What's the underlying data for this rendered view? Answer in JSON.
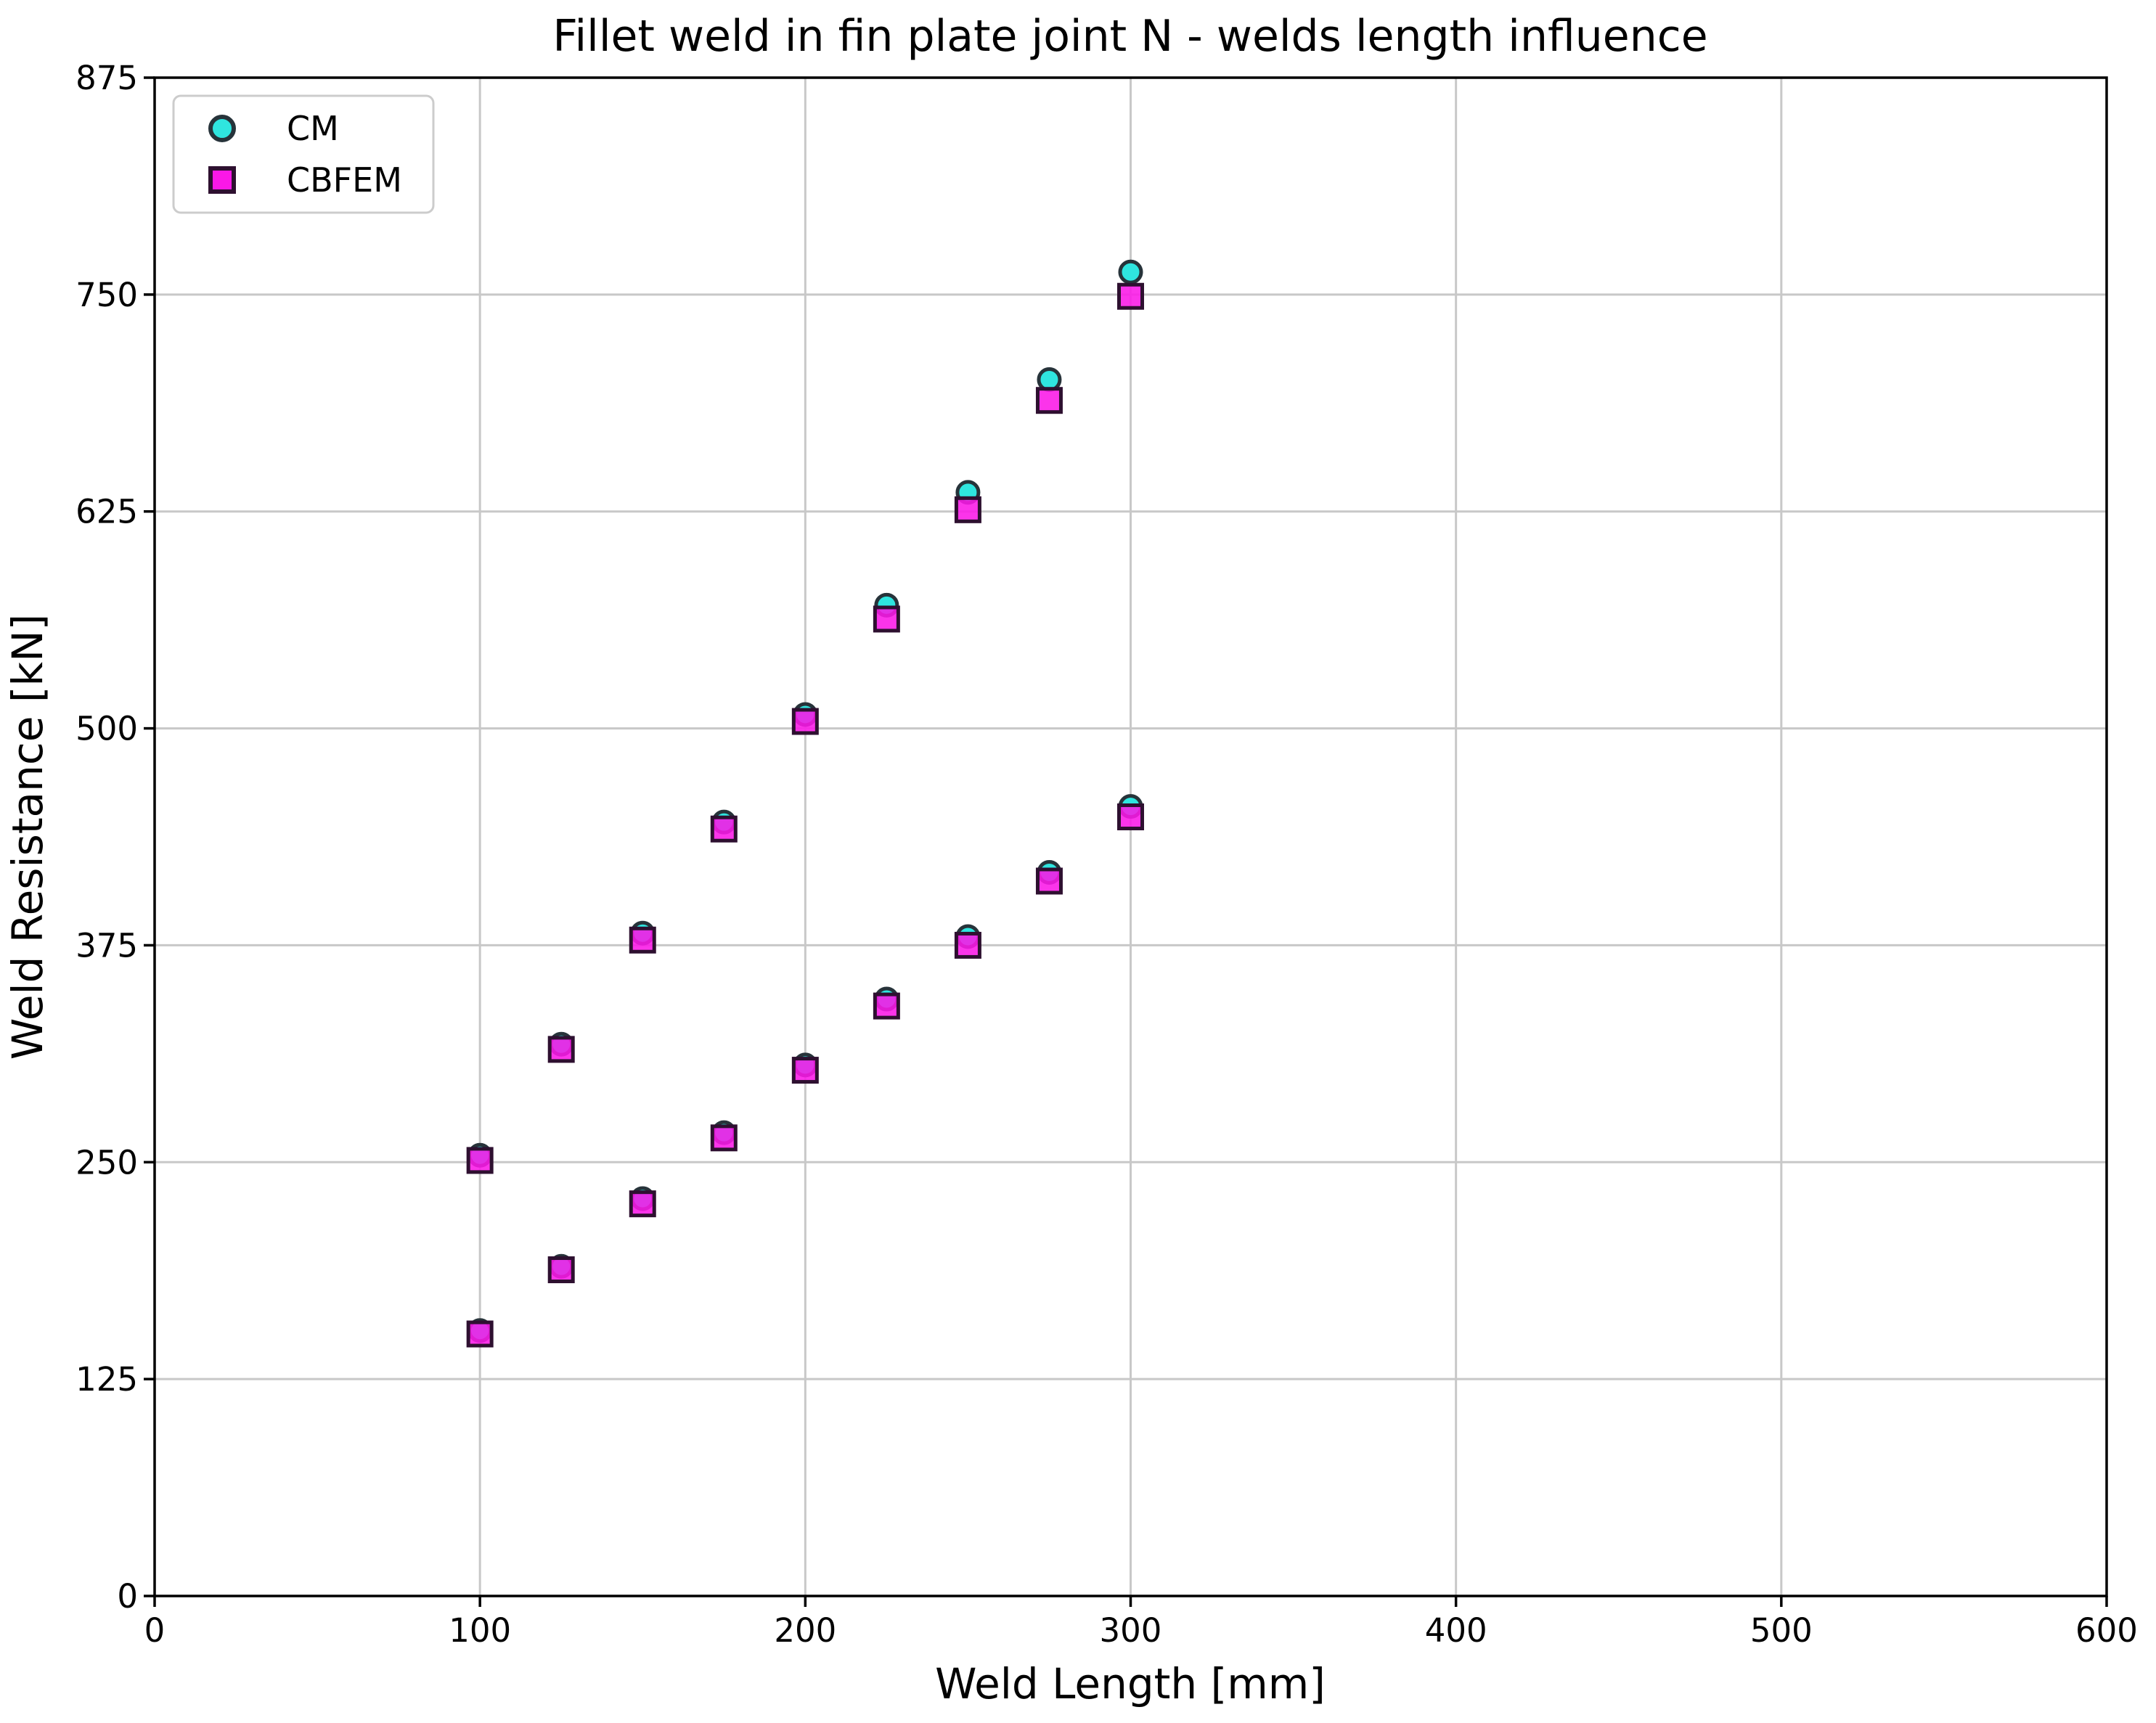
{
  "chart_data": {
    "type": "scatter",
    "title": "Fillet weld in fin plate joint N - welds length influence",
    "xlabel": "Weld Length [mm]",
    "ylabel": "Weld Resistance [kN]",
    "xlim": [
      0,
      600
    ],
    "ylim": [
      0,
      875
    ],
    "xticks": [
      0,
      100,
      200,
      300,
      400,
      500,
      600
    ],
    "yticks": [
      0,
      125,
      250,
      375,
      500,
      625,
      750,
      875
    ],
    "grid": true,
    "grid_color": "#c8c8c8",
    "legend_position": "upper left",
    "series": [
      {
        "name": "CM",
        "marker": "circle",
        "fill_color": "#2fe5df",
        "edge_color": "#27333a",
        "points": [
          [
            100,
            254
          ],
          [
            125,
            318
          ],
          [
            150,
            382
          ],
          [
            175,
            446
          ],
          [
            200,
            508
          ],
          [
            225,
            571
          ],
          [
            250,
            636
          ],
          [
            275,
            701
          ],
          [
            300,
            763
          ],
          [
            100,
            153
          ],
          [
            125,
            190
          ],
          [
            150,
            229
          ],
          [
            175,
            267
          ],
          [
            200,
            306
          ],
          [
            225,
            344
          ],
          [
            250,
            380
          ],
          [
            275,
            417
          ],
          [
            300,
            455
          ]
        ]
      },
      {
        "name": "CBFEM",
        "marker": "square",
        "fill_color": "#fa18e7",
        "edge_color": "#2e1030",
        "points": [
          [
            100,
            251
          ],
          [
            125,
            315
          ],
          [
            150,
            378
          ],
          [
            175,
            442
          ],
          [
            200,
            504
          ],
          [
            225,
            563
          ],
          [
            250,
            626
          ],
          [
            275,
            689
          ],
          [
            300,
            749
          ],
          [
            100,
            151
          ],
          [
            125,
            188
          ],
          [
            150,
            226
          ],
          [
            175,
            264
          ],
          [
            200,
            303
          ],
          [
            225,
            340
          ],
          [
            250,
            375
          ],
          [
            275,
            412
          ],
          [
            300,
            449
          ]
        ]
      }
    ]
  }
}
